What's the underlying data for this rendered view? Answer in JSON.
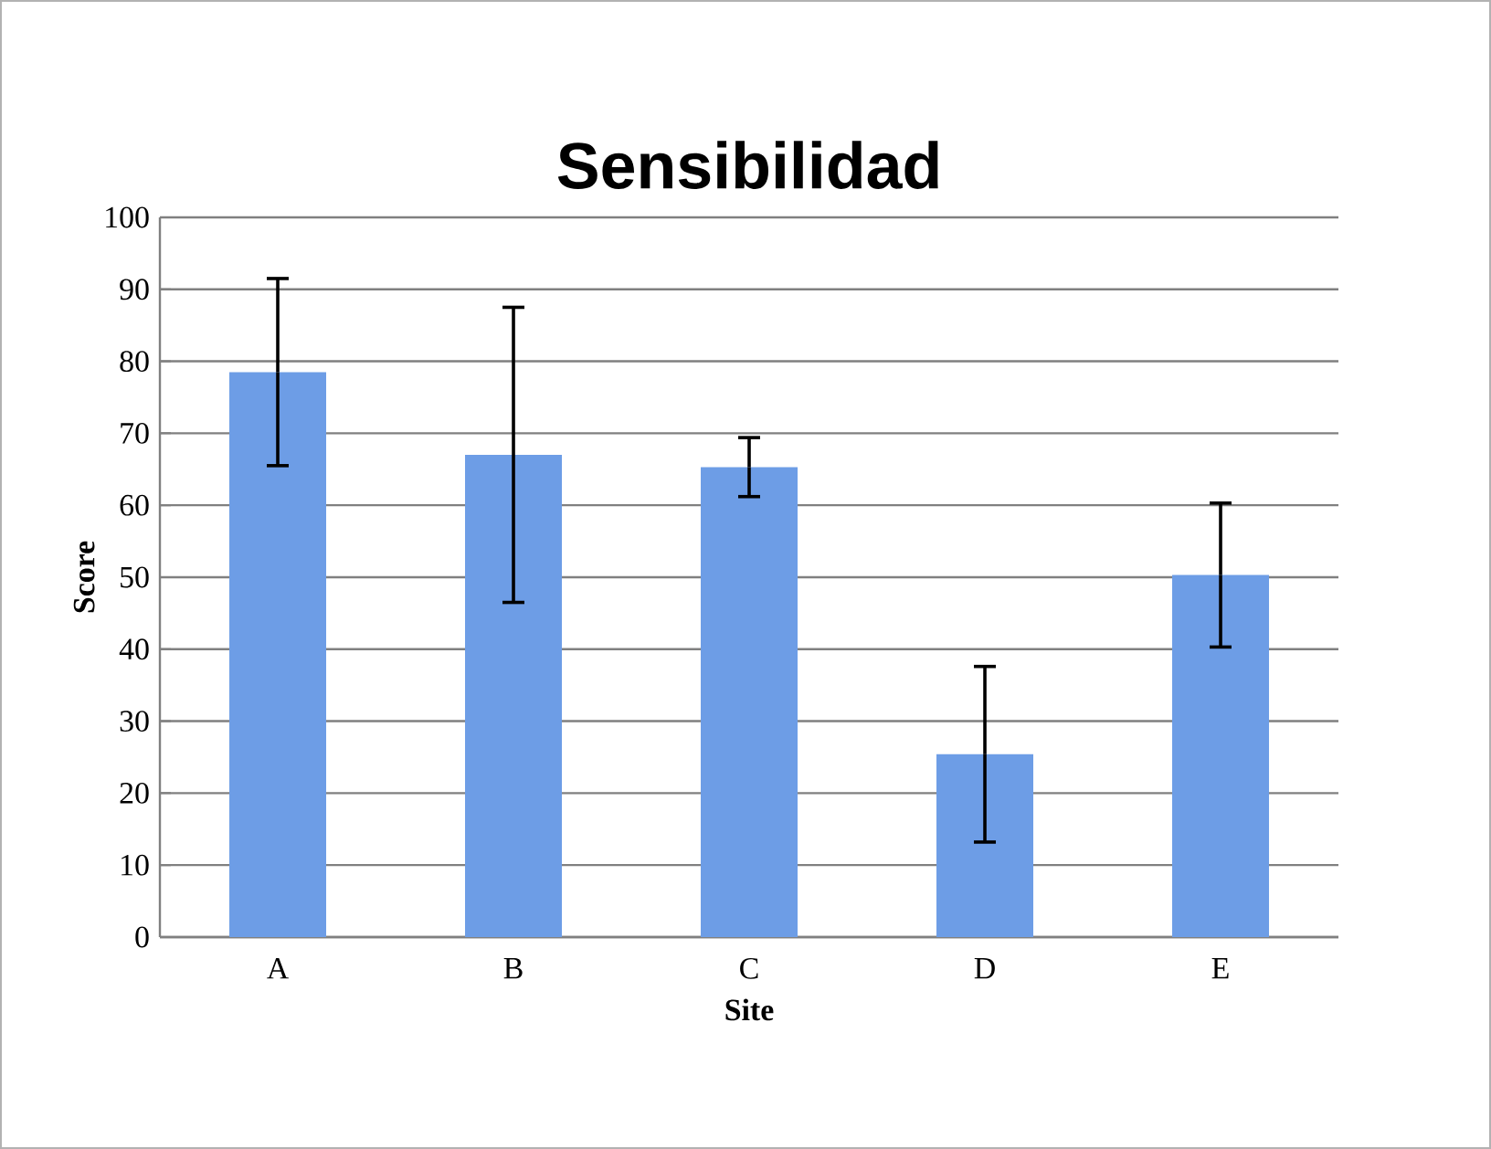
{
  "chart_data": {
    "type": "bar",
    "title": "Sensibilidad",
    "xlabel": "Site",
    "ylabel": "Score",
    "categories": [
      "A",
      "B",
      "C",
      "D",
      "E"
    ],
    "values": [
      78.5,
      67,
      65.3,
      25.4,
      50.3
    ],
    "errors": [
      13,
      20.5,
      4.1,
      12.2,
      10
    ],
    "color": "#6d9de6",
    "ylim": [
      0,
      100
    ],
    "yticks": [
      0,
      10,
      20,
      30,
      40,
      50,
      60,
      70,
      80,
      90,
      100
    ],
    "grid": "y"
  }
}
